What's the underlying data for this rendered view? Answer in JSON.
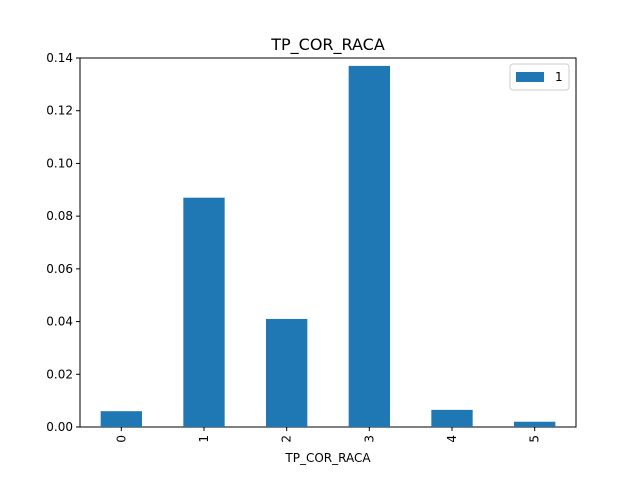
{
  "chart_data": {
    "type": "bar",
    "title": "TP_COR_RACA",
    "xlabel": "TP_COR_RACA",
    "ylabel": "",
    "categories": [
      "0",
      "1",
      "2",
      "3",
      "4",
      "5"
    ],
    "series": [
      {
        "name": "1",
        "values": [
          0.006,
          0.087,
          0.041,
          0.137,
          0.0065,
          0.002
        ],
        "color": "#1f77b4"
      }
    ],
    "ylim": [
      0,
      0.14
    ],
    "yticks": [
      "0.00",
      "0.02",
      "0.04",
      "0.06",
      "0.08",
      "0.10",
      "0.12",
      "0.14"
    ],
    "ytick_values": [
      0,
      0.02,
      0.04,
      0.06,
      0.08,
      0.1,
      0.12,
      0.14
    ],
    "grid": false,
    "legend": "top-right",
    "xtick_rotation": "vertical"
  }
}
